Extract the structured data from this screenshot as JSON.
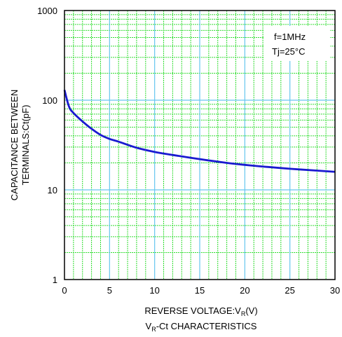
{
  "chart_data": {
    "type": "line",
    "x_scale": "linear",
    "y_scale": "log",
    "xlim": [
      0,
      30
    ],
    "ylim": [
      1,
      1000
    ],
    "x_ticks": [
      "0",
      "5",
      "10",
      "15",
      "20",
      "25",
      "30"
    ],
    "y_ticks": [
      "1",
      "10",
      "100",
      "1000"
    ],
    "xlabel_main": "REVERSE VOLTAGE:V",
    "xlabel_sub": "R",
    "xlabel_tail": "(V)",
    "ylabel_line1": "CAPACITANCE BETWEEN",
    "ylabel_line2": "TERMINALS:Ct(pF)",
    "caption_pre": "V",
    "caption_sub": "R",
    "caption_post": "-Ct CHARACTERISTICS",
    "annotations": [
      "f=1MHz",
      "Tj=25°C"
    ],
    "grid": true,
    "colors": {
      "grid_minor": "#33dd33",
      "grid_major": "#66c6ef",
      "curve": "#1a1ad0",
      "axis": "#000000"
    },
    "series": [
      {
        "x": [
          0,
          0.5,
          1,
          2,
          3,
          4,
          5,
          6,
          8,
          10,
          12,
          15,
          18,
          20,
          22,
          25,
          28,
          30
        ],
        "values": [
          130,
          85,
          72,
          58,
          48,
          41,
          37,
          34.5,
          29.5,
          26.5,
          24.5,
          22,
          20,
          19,
          18.2,
          17.2,
          16.4,
          15.9
        ]
      }
    ]
  }
}
